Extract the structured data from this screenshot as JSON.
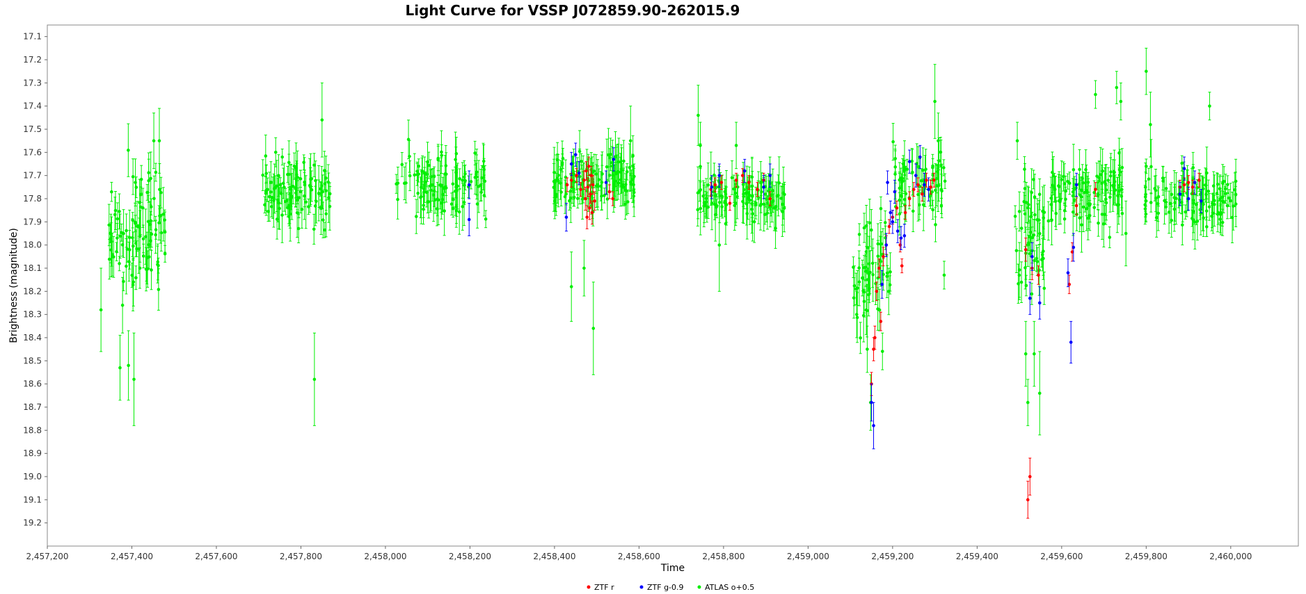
{
  "chart_data": {
    "type": "scatter",
    "title": "Light Curve for VSSP J072859.90-262015.9",
    "xlabel": "Time",
    "ylabel": "Brightness (magnitude)",
    "xlim": [
      2457200,
      2460160
    ],
    "ylim": [
      19.3,
      17.05
    ],
    "y_inverted": true,
    "x_ticks": [
      2457200,
      2457400,
      2457600,
      2457800,
      2458000,
      2458200,
      2458400,
      2458600,
      2458800,
      2459000,
      2459200,
      2459400,
      2459600,
      2459800,
      2460000
    ],
    "x_tick_labels": [
      "2,457,200",
      "2,457,400",
      "2,457,600",
      "2,457,800",
      "2,458,000",
      "2,458,200",
      "2,458,400",
      "2,458,600",
      "2,458,800",
      "2,459,000",
      "2,459,200",
      "2,459,400",
      "2,459,600",
      "2,459,800",
      "2,460,000"
    ],
    "y_ticks": [
      17.1,
      17.2,
      17.3,
      17.4,
      17.5,
      17.6,
      17.7,
      17.8,
      17.9,
      18.0,
      18.1,
      18.2,
      18.3,
      18.4,
      18.5,
      18.6,
      18.7,
      18.8,
      18.9,
      19.0,
      19.1,
      19.2
    ],
    "y_tick_labels": [
      "17.1",
      "17.2",
      "17.3",
      "17.4",
      "17.5",
      "17.6",
      "17.7",
      "17.8",
      "17.9",
      "18.0",
      "18.1",
      "18.2",
      "18.3",
      "18.4",
      "18.5",
      "18.6",
      "18.7",
      "18.8",
      "18.9",
      "19.0",
      "19.1",
      "19.2"
    ],
    "grid": false,
    "legend_position": "bottom-center",
    "series": [
      {
        "name": "ZTF r",
        "color": "#ff0000",
        "points": [
          [
            2458430,
            17.74,
            0.03
          ],
          [
            2458440,
            17.72,
            0.03
          ],
          [
            2458452,
            17.7,
            0.03
          ],
          [
            2458462,
            17.76,
            0.03
          ],
          [
            2458470,
            17.72,
            0.04
          ],
          [
            2458473,
            17.8,
            0.05
          ],
          [
            2458475,
            17.68,
            0.04
          ],
          [
            2458477,
            17.88,
            0.05
          ],
          [
            2458479,
            17.75,
            0.04
          ],
          [
            2458481,
            17.66,
            0.04
          ],
          [
            2458483,
            17.84,
            0.05
          ],
          [
            2458485,
            17.78,
            0.04
          ],
          [
            2458487,
            17.7,
            0.04
          ],
          [
            2458489,
            17.86,
            0.05
          ],
          [
            2458491,
            17.74,
            0.04
          ],
          [
            2458495,
            17.81,
            0.04
          ],
          [
            2458530,
            17.77,
            0.03
          ],
          [
            2458538,
            17.8,
            0.03
          ],
          [
            2458770,
            17.76,
            0.03
          ],
          [
            2458780,
            17.74,
            0.03
          ],
          [
            2458795,
            17.73,
            0.03
          ],
          [
            2458815,
            17.82,
            0.03
          ],
          [
            2458830,
            17.72,
            0.03
          ],
          [
            2458845,
            17.7,
            0.03
          ],
          [
            2458860,
            17.73,
            0.03
          ],
          [
            2458880,
            17.76,
            0.03
          ],
          [
            2458895,
            17.72,
            0.03
          ],
          [
            2458910,
            17.8,
            0.03
          ],
          [
            2459150,
            18.6,
            0.05
          ],
          [
            2459155,
            18.45,
            0.05
          ],
          [
            2459158,
            18.4,
            0.05
          ],
          [
            2459162,
            18.2,
            0.04
          ],
          [
            2459168,
            18.1,
            0.04
          ],
          [
            2459172,
            18.33,
            0.04
          ],
          [
            2459178,
            18.05,
            0.04
          ],
          [
            2459185,
            18.0,
            0.04
          ],
          [
            2459192,
            17.92,
            0.03
          ],
          [
            2459200,
            17.88,
            0.03
          ],
          [
            2459210,
            17.84,
            0.03
          ],
          [
            2459218,
            18.0,
            0.03
          ],
          [
            2459222,
            18.09,
            0.03
          ],
          [
            2459230,
            17.86,
            0.03
          ],
          [
            2459240,
            17.8,
            0.03
          ],
          [
            2459250,
            17.76,
            0.03
          ],
          [
            2459260,
            17.74,
            0.03
          ],
          [
            2459270,
            17.78,
            0.03
          ],
          [
            2459280,
            17.72,
            0.03
          ],
          [
            2459290,
            17.75,
            0.03
          ],
          [
            2459298,
            17.72,
            0.03
          ],
          [
            2459515,
            18.02,
            0.05
          ],
          [
            2459520,
            19.1,
            0.08
          ],
          [
            2459525,
            19.0,
            0.08
          ],
          [
            2459530,
            18.1,
            0.05
          ],
          [
            2459545,
            18.13,
            0.04
          ],
          [
            2459618,
            18.17,
            0.04
          ],
          [
            2459625,
            18.03,
            0.04
          ],
          [
            2459635,
            17.83,
            0.04
          ],
          [
            2459680,
            17.76,
            0.03
          ],
          [
            2459880,
            17.75,
            0.03
          ],
          [
            2459890,
            17.74,
            0.03
          ],
          [
            2459900,
            17.73,
            0.03
          ],
          [
            2459910,
            17.75,
            0.03
          ],
          [
            2459925,
            17.72,
            0.03
          ]
        ]
      },
      {
        "name": "ZTF g-0.9",
        "color": "#0000ff",
        "points": [
          [
            2458198,
            17.74,
            0.06
          ],
          [
            2458198,
            17.89,
            0.07
          ],
          [
            2458428,
            17.88,
            0.06
          ],
          [
            2458440,
            17.65,
            0.05
          ],
          [
            2458450,
            17.61,
            0.05
          ],
          [
            2458458,
            17.69,
            0.05
          ],
          [
            2458522,
            17.73,
            0.05
          ],
          [
            2458540,
            17.63,
            0.05
          ],
          [
            2458772,
            17.75,
            0.05
          ],
          [
            2458790,
            17.7,
            0.05
          ],
          [
            2458850,
            17.68,
            0.05
          ],
          [
            2458895,
            17.75,
            0.05
          ],
          [
            2458910,
            17.7,
            0.05
          ],
          [
            2459150,
            18.68,
            0.08
          ],
          [
            2459155,
            18.78,
            0.1
          ],
          [
            2459175,
            18.17,
            0.06
          ],
          [
            2459185,
            18.0,
            0.05
          ],
          [
            2459188,
            17.73,
            0.05
          ],
          [
            2459195,
            17.86,
            0.05
          ],
          [
            2459200,
            17.9,
            0.05
          ],
          [
            2459205,
            17.77,
            0.05
          ],
          [
            2459212,
            17.94,
            0.05
          ],
          [
            2459220,
            17.97,
            0.05
          ],
          [
            2459228,
            17.96,
            0.05
          ],
          [
            2459240,
            17.64,
            0.05
          ],
          [
            2459255,
            17.7,
            0.05
          ],
          [
            2459265,
            17.62,
            0.05
          ],
          [
            2459275,
            17.74,
            0.05
          ],
          [
            2459285,
            17.76,
            0.05
          ],
          [
            2459525,
            18.23,
            0.07
          ],
          [
            2459530,
            18.05,
            0.06
          ],
          [
            2459548,
            18.25,
            0.07
          ],
          [
            2459615,
            18.12,
            0.06
          ],
          [
            2459622,
            18.42,
            0.09
          ],
          [
            2459628,
            18.01,
            0.06
          ],
          [
            2459635,
            17.74,
            0.05
          ],
          [
            2459880,
            17.78,
            0.05
          ],
          [
            2459890,
            17.67,
            0.05
          ],
          [
            2459900,
            17.8,
            0.05
          ],
          [
            2459915,
            17.73,
            0.05
          ],
          [
            2459930,
            17.81,
            0.05
          ]
        ]
      },
      {
        "name": "ATLAS o+0.5",
        "color": "#00ee00",
        "clusters": [
          [
            2457345,
            2457480,
            17.95,
            0.2,
            90,
            17
          ],
          [
            2457705,
            2457870,
            17.78,
            0.13,
            95,
            23
          ],
          [
            2458025,
            2458240,
            17.74,
            0.11,
            100,
            31
          ],
          [
            2458395,
            2458590,
            17.72,
            0.09,
            115,
            41
          ],
          [
            2458735,
            2458945,
            17.8,
            0.09,
            110,
            53
          ],
          [
            2459105,
            2459195,
            18.1,
            0.22,
            55,
            61
          ],
          [
            2459195,
            2459325,
            17.75,
            0.12,
            60,
            67
          ],
          [
            2459490,
            2459580,
            17.95,
            0.22,
            55,
            71
          ],
          [
            2459580,
            2459755,
            17.78,
            0.13,
            90,
            79
          ],
          [
            2459795,
            2460015,
            17.8,
            0.1,
            110,
            83
          ]
        ],
        "extra_points": [
          [
            2457327,
            18.28,
            0.18
          ],
          [
            2457372,
            18.53,
            0.14
          ],
          [
            2457378,
            18.26,
            0.12
          ],
          [
            2457392,
            18.52,
            0.15
          ],
          [
            2457405,
            18.58,
            0.2
          ],
          [
            2457452,
            17.55,
            0.12
          ],
          [
            2457465,
            17.55,
            0.14
          ],
          [
            2457832,
            18.58,
            0.2
          ],
          [
            2457850,
            17.46,
            0.16
          ],
          [
            2458440,
            18.18,
            0.15
          ],
          [
            2458470,
            18.1,
            0.12
          ],
          [
            2458492,
            18.36,
            0.2
          ],
          [
            2458580,
            17.55,
            0.15
          ],
          [
            2458740,
            17.44,
            0.13
          ],
          [
            2458745,
            17.57,
            0.1
          ],
          [
            2458790,
            18.0,
            0.2
          ],
          [
            2458830,
            17.57,
            0.1
          ],
          [
            2459115,
            18.3,
            0.1
          ],
          [
            2459140,
            18.45,
            0.1
          ],
          [
            2459148,
            18.68,
            0.12
          ],
          [
            2459300,
            17.38,
            0.16
          ],
          [
            2459308,
            17.55,
            0.12
          ],
          [
            2459322,
            18.13,
            0.06
          ],
          [
            2459495,
            17.55,
            0.08
          ],
          [
            2459515,
            18.47,
            0.14
          ],
          [
            2459520,
            18.68,
            0.1
          ],
          [
            2459535,
            18.47,
            0.14
          ],
          [
            2459548,
            18.64,
            0.18
          ],
          [
            2459680,
            17.35,
            0.06
          ],
          [
            2459730,
            17.32,
            0.07
          ],
          [
            2459740,
            17.38,
            0.08
          ],
          [
            2459752,
            17.95,
            0.14
          ],
          [
            2459800,
            17.25,
            0.1
          ],
          [
            2459810,
            17.48,
            0.14
          ],
          [
            2459950,
            17.4,
            0.06
          ]
        ]
      }
    ]
  }
}
